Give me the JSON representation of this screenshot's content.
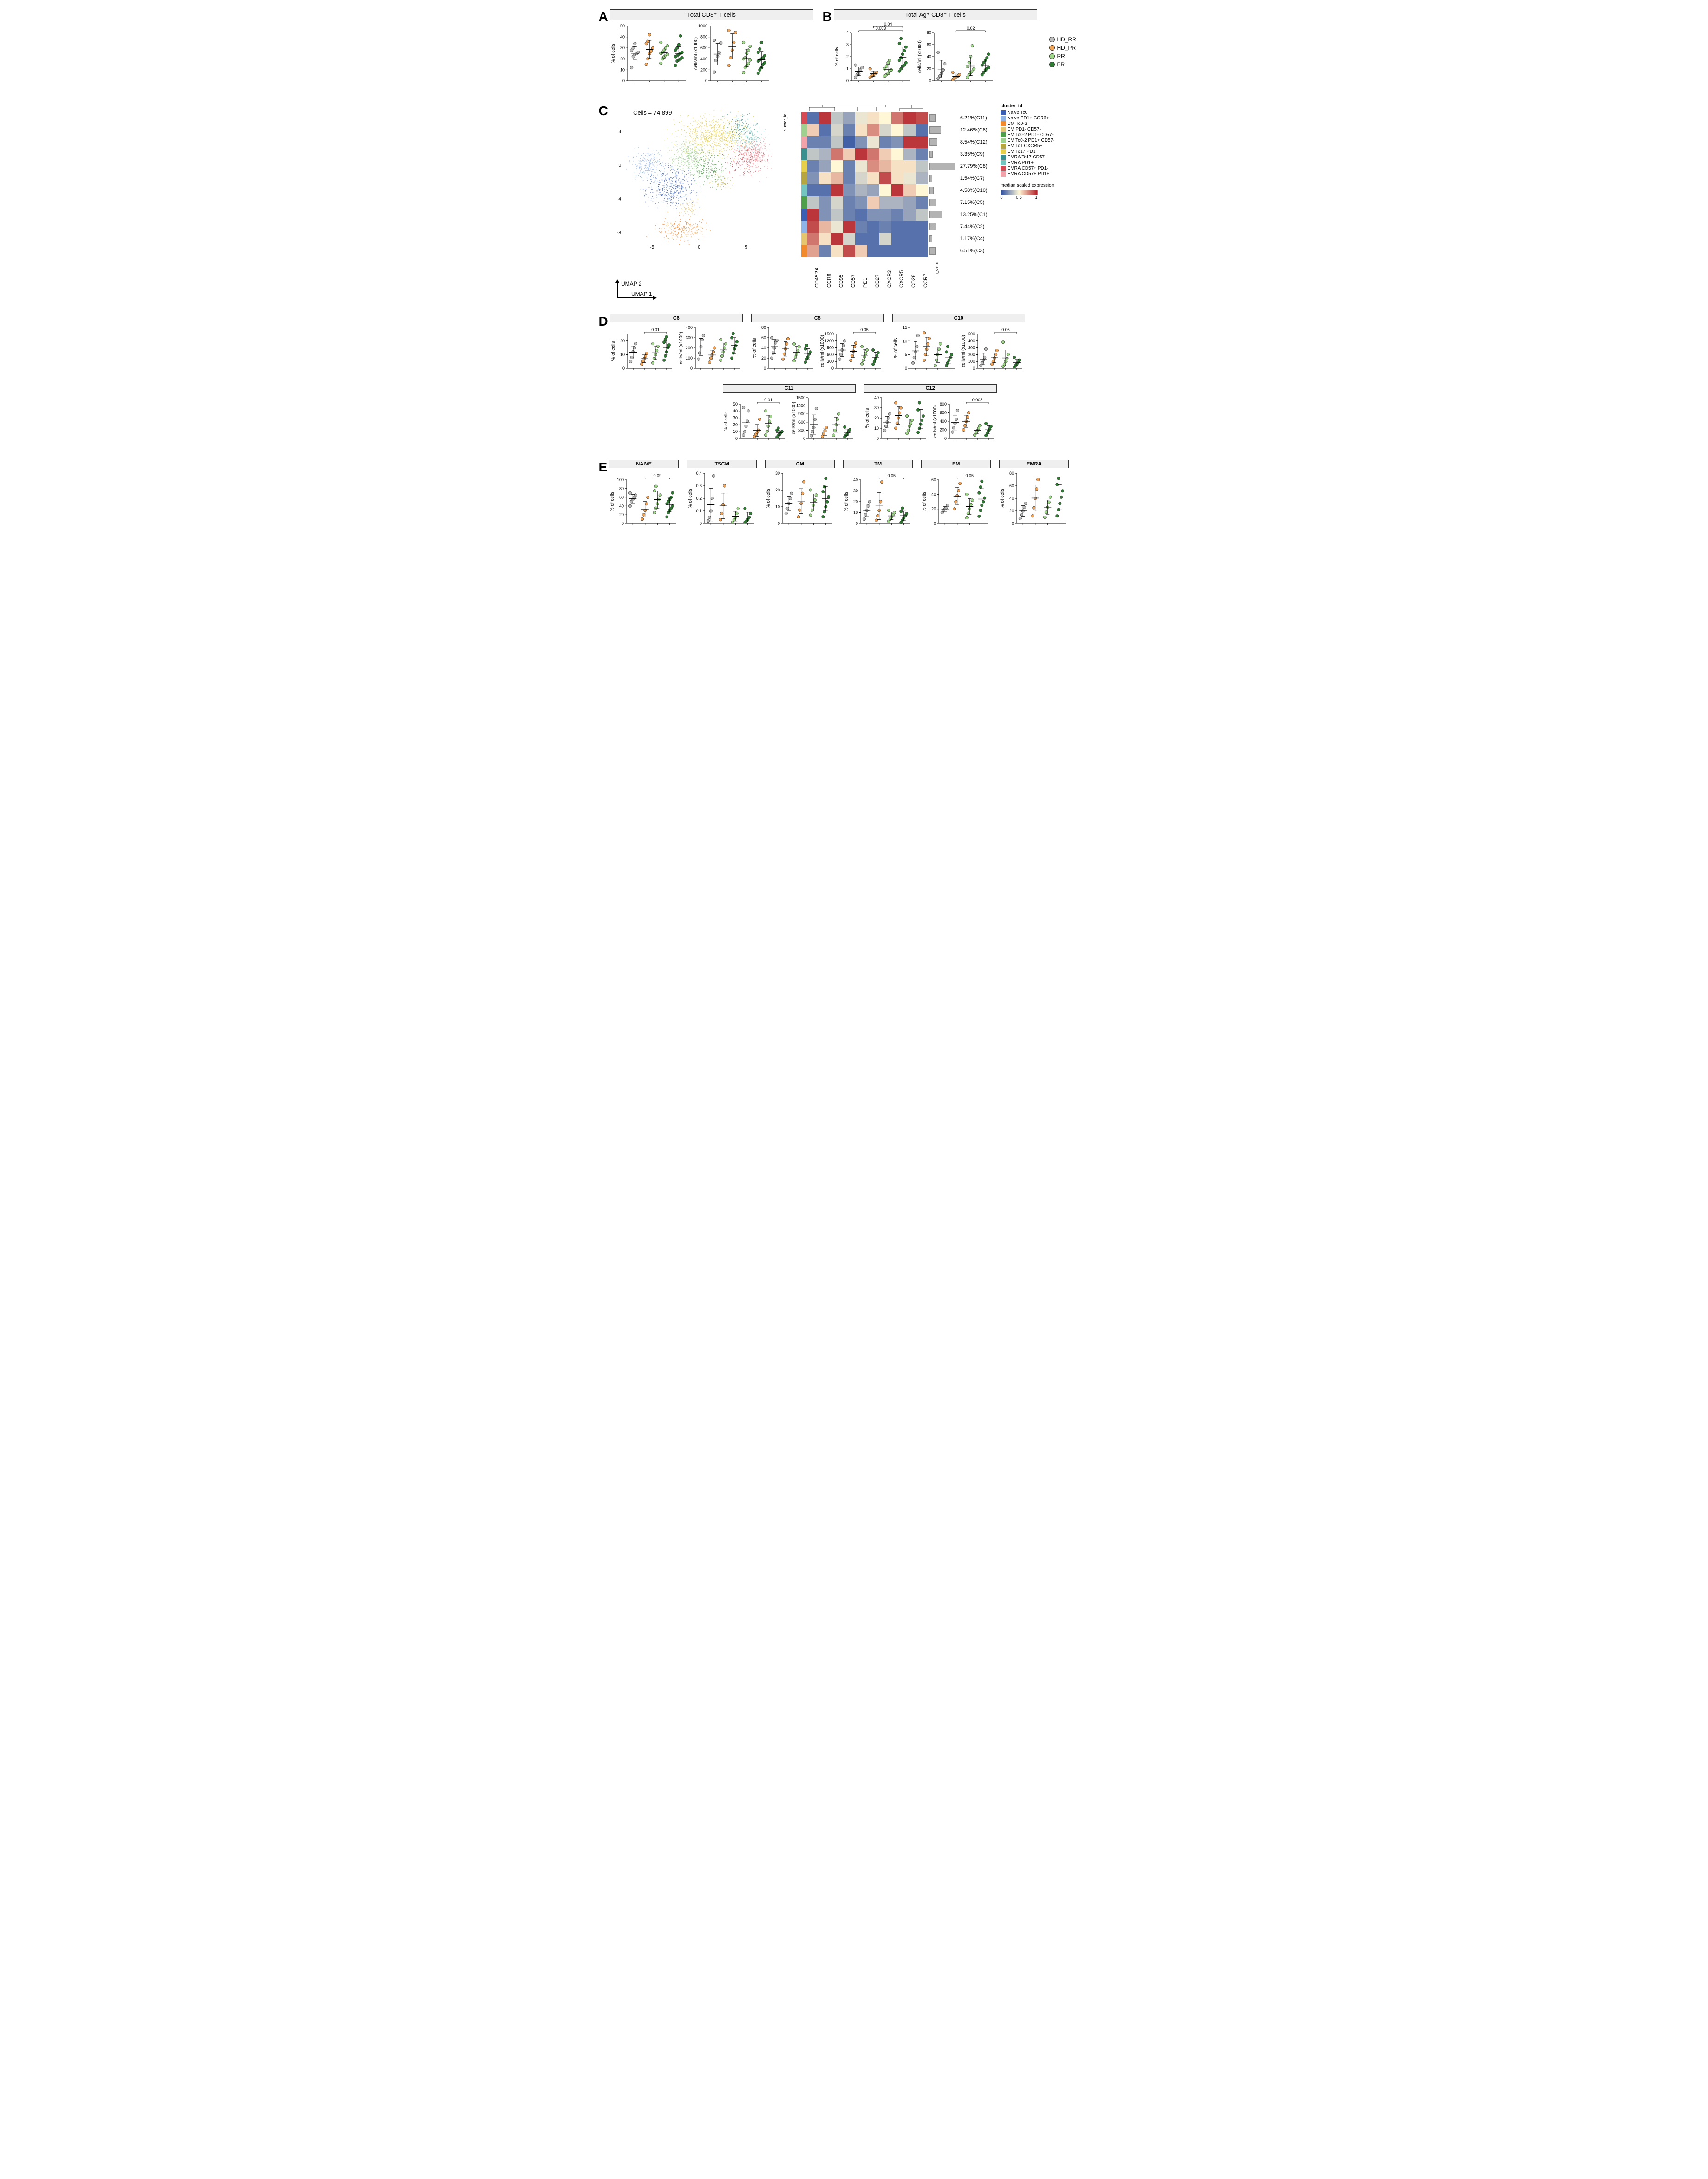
{
  "groups": [
    {
      "id": "HD_RR",
      "label": "HD_RR",
      "color": "#bdbdbd"
    },
    {
      "id": "HD_PR",
      "label": "HD_PR",
      "color": "#f2a65a"
    },
    {
      "id": "RR",
      "label": "RR",
      "color": "#a0d88a"
    },
    {
      "id": "PR",
      "label": "PR",
      "color": "#2e7d32"
    }
  ],
  "panelA": {
    "label": "A",
    "title": "Total CD8⁺ T cells",
    "charts": [
      {
        "ylabel": "% of cells",
        "ylim": [
          0,
          50
        ],
        "yticks": [
          0,
          10,
          20,
          30,
          40,
          50
        ],
        "data": {
          "HD_RR": [
            12,
            22,
            24,
            25,
            26,
            28,
            30,
            34
          ],
          "HD_PR": [
            15,
            20,
            25,
            27,
            30,
            34,
            36,
            42
          ],
          "RR": [
            16,
            20,
            22,
            23,
            24,
            25,
            26,
            28,
            30,
            32,
            35
          ],
          "PR": [
            14,
            18,
            19,
            20,
            21,
            22,
            23,
            24,
            25,
            26,
            28,
            30,
            33,
            41
          ]
        }
      },
      {
        "ylabel": "cells/ml (x1000)",
        "ylim": [
          0,
          1000
        ],
        "yticks": [
          0,
          200,
          400,
          600,
          800,
          1000
        ],
        "data": {
          "HD_RR": [
            160,
            370,
            440,
            520,
            690,
            740
          ],
          "HD_PR": [
            280,
            420,
            560,
            700,
            880,
            920
          ],
          "RR": [
            150,
            240,
            280,
            320,
            380,
            400,
            420,
            500,
            560,
            630,
            700
          ],
          "PR": [
            140,
            200,
            240,
            300,
            330,
            360,
            380,
            400,
            420,
            460,
            520,
            580,
            700
          ]
        }
      }
    ]
  },
  "panelB": {
    "label": "B",
    "title": "Total Ag⁺ CD8⁺ T cells",
    "charts": [
      {
        "ylabel": "% of cells",
        "ylim": [
          0,
          4
        ],
        "yticks": [
          0,
          1,
          2,
          3,
          4
        ],
        "sig": [
          {
            "from": 0,
            "to": 3,
            "label": "0.003"
          },
          {
            "from": 1,
            "to": 3,
            "label": "0.04"
          }
        ],
        "data": {
          "HD_RR": [
            0.3,
            0.5,
            0.6,
            0.9,
            1.1,
            1.3
          ],
          "HD_PR": [
            0.3,
            0.4,
            0.5,
            0.6,
            0.7,
            1.0
          ],
          "RR": [
            0.4,
            0.5,
            0.6,
            0.8,
            0.9,
            1.0,
            1.2,
            1.5,
            1.7
          ],
          "PR": [
            0.8,
            1.0,
            1.2,
            1.3,
            1.5,
            1.7,
            1.9,
            2.2,
            2.5,
            2.8,
            3.1,
            3.5
          ]
        }
      },
      {
        "ylabel": "cells/ml (x1000)",
        "ylim": [
          0,
          80
        ],
        "yticks": [
          0,
          20,
          40,
          60,
          80
        ],
        "sig": [
          {
            "from": 1,
            "to": 3,
            "label": "0.02"
          }
        ],
        "data": {
          "HD_RR": [
            4,
            8,
            12,
            18,
            28,
            47
          ],
          "HD_PR": [
            2,
            4,
            6,
            8,
            10,
            14
          ],
          "RR": [
            6,
            10,
            14,
            16,
            20,
            24,
            30,
            40,
            58
          ],
          "PR": [
            10,
            14,
            18,
            20,
            22,
            26,
            30,
            34,
            38,
            44
          ]
        }
      }
    ]
  },
  "panelC": {
    "label": "C",
    "cells_label": "Cells = 74,899",
    "umap": {
      "xlabel": "UMAP 1",
      "ylabel": "UMAP 2",
      "xlim": [
        -8,
        8
      ],
      "ylim": [
        -9,
        7
      ],
      "xticks": [
        -5,
        0,
        5
      ],
      "yticks": [
        -8,
        -4,
        0,
        4
      ]
    },
    "heatmap": {
      "markers": [
        "CD45RA",
        "CCR6",
        "CD95",
        "CD57",
        "PD1",
        "CD27",
        "CXCR3",
        "CXCR5",
        "CD28",
        "CCR7"
      ],
      "row_order": [
        "C11",
        "C6",
        "C12",
        "C9",
        "C8",
        "C7",
        "C10",
        "C5",
        "C1",
        "C2",
        "C4",
        "C3"
      ],
      "row_pct": {
        "C11": "6.21%(C11)",
        "C6": "12.46%(C6)",
        "C12": "8.54%(C12)",
        "C9": "3.35%(C9)",
        "C8": "27.79%(C8)",
        "C7": "1.54%(C7)",
        "C10": "4.58%(C10)",
        "C5": "7.15%(C5)",
        "C1": "13.25%(C1)",
        "C2": "7.44%(C2)",
        "C4": "1.17%(C4)",
        "C3": "6.51%(C3)"
      },
      "values": {
        "C11": [
          0.1,
          0.95,
          0.35,
          0.25,
          0.45,
          0.55,
          0.5,
          0.8,
          0.95,
          0.9
        ],
        "C6": [
          0.6,
          0.1,
          0.4,
          0.15,
          0.55,
          0.75,
          0.4,
          0.5,
          0.35,
          0.1
        ],
        "C12": [
          0.15,
          0.15,
          0.35,
          0.05,
          0.2,
          0.45,
          0.15,
          0.2,
          0.95,
          0.95
        ],
        "C9": [
          0.35,
          0.3,
          0.8,
          0.6,
          0.95,
          0.8,
          0.6,
          0.5,
          0.3,
          0.15
        ],
        "C8": [
          0.15,
          0.25,
          0.5,
          0.15,
          0.45,
          0.75,
          0.65,
          0.55,
          0.55,
          0.35
        ],
        "C7": [
          0.2,
          0.55,
          0.65,
          0.15,
          0.4,
          0.55,
          0.9,
          0.55,
          0.45,
          0.3
        ],
        "C10": [
          0.1,
          0.1,
          0.95,
          0.2,
          0.3,
          0.25,
          0.5,
          0.95,
          0.6,
          0.5
        ],
        "C5": [
          0.35,
          0.2,
          0.4,
          0.15,
          0.2,
          0.6,
          0.3,
          0.3,
          0.25,
          0.15
        ],
        "C1": [
          0.95,
          0.2,
          0.35,
          0.15,
          0.1,
          0.2,
          0.2,
          0.15,
          0.25,
          0.35
        ],
        "C2": [
          0.9,
          0.65,
          0.45,
          0.95,
          0.15,
          0.1,
          0.15,
          0.1,
          0.1,
          0.1
        ],
        "C4": [
          0.8,
          0.55,
          0.95,
          0.4,
          0.1,
          0.1,
          0.4,
          0.1,
          0.1,
          0.1
        ],
        "C3": [
          0.7,
          0.15,
          0.55,
          0.9,
          0.6,
          0.1,
          0.1,
          0.1,
          0.1,
          0.1
        ]
      },
      "colorscale": {
        "low": "#2c4fa0",
        "mid": "#fff7d6",
        "high": "#b3202a"
      }
    },
    "clusters": [
      {
        "id": "C1",
        "name": "Naive Tc0",
        "color": "#3b5fb2"
      },
      {
        "id": "C2",
        "name": "Naive PD1+ CCR6+",
        "color": "#8fb4e8"
      },
      {
        "id": "C3",
        "name": "CM Tc0-2",
        "color": "#f08a2c"
      },
      {
        "id": "C4",
        "name": "EM PD1- CD57-",
        "color": "#e6c56f"
      },
      {
        "id": "C5",
        "name": "EM Tc0-2 PD1- CD57-",
        "color": "#4f9e4a"
      },
      {
        "id": "C6",
        "name": "EM Tc0-2 PD1+ CD57-",
        "color": "#9ed08f"
      },
      {
        "id": "C7",
        "name": "EM Tc1 CXCR5+",
        "color": "#b5a642"
      },
      {
        "id": "C8",
        "name": "EM Tc17 PD1+",
        "color": "#e6cf4b"
      },
      {
        "id": "C9",
        "name": "EMRA Tc17 CD57-",
        "color": "#3a8f8f"
      },
      {
        "id": "C10",
        "name": "EMRA PD1+",
        "color": "#74c4c0"
      },
      {
        "id": "C11",
        "name": "EMRA CD57+ PD1-",
        "color": "#d64a54"
      },
      {
        "id": "C12",
        "name": "EMRA CD57+ PD1+",
        "color": "#f2a3aa"
      }
    ],
    "expr_legend": {
      "title": "median scaled expression",
      "ticks": [
        0,
        0.5,
        1
      ]
    },
    "ncells_label": "n_cells"
  },
  "panelD": {
    "label": "D",
    "panels": [
      {
        "title": "C6",
        "sig_pct": "0.01",
        "ylim_pct": [
          0,
          25
        ],
        "ylim_ct": [
          0,
          400
        ],
        "pct": {
          "HD_RR": [
            5,
            8,
            12,
            15,
            18
          ],
          "HD_PR": [
            3,
            5,
            7,
            9,
            11
          ],
          "RR": [
            4,
            7,
            10,
            13,
            16,
            18
          ],
          "PR": [
            6,
            9,
            12,
            15,
            17,
            19,
            21,
            23
          ]
        },
        "ct": {
          "HD_RR": [
            90,
            150,
            210,
            280,
            320
          ],
          "HD_PR": [
            60,
            100,
            130,
            160,
            200
          ],
          "RR": [
            80,
            120,
            160,
            200,
            240,
            280
          ],
          "PR": [
            100,
            150,
            190,
            220,
            260,
            300,
            340
          ]
        }
      },
      {
        "title": "C8",
        "sig_ct": "0.05",
        "ylim_pct": [
          0,
          80
        ],
        "ylim_ct": [
          0,
          1500
        ],
        "pct": {
          "HD_RR": [
            20,
            30,
            40,
            50,
            55,
            60
          ],
          "HD_PR": [
            18,
            28,
            38,
            48,
            58
          ],
          "RR": [
            15,
            22,
            28,
            35,
            42,
            48
          ],
          "PR": [
            12,
            18,
            22,
            28,
            32,
            38,
            45
          ]
        },
        "ct": {
          "HD_RR": [
            400,
            600,
            800,
            1000,
            1200
          ],
          "HD_PR": [
            350,
            550,
            750,
            950,
            1100
          ],
          "RR": [
            200,
            350,
            500,
            650,
            800,
            950
          ],
          "PR": [
            180,
            300,
            420,
            550,
            680,
            800
          ]
        }
      },
      {
        "title": "C10",
        "sig_ct": "0.05",
        "ylim_pct": [
          0,
          15
        ],
        "ylim_ct": [
          0,
          500
        ],
        "pct": {
          "HD_RR": [
            2,
            4,
            6,
            8,
            12
          ],
          "HD_PR": [
            3,
            5,
            7,
            9,
            11,
            13
          ],
          "RR": [
            1,
            3,
            5,
            7,
            9
          ],
          "PR": [
            1,
            2,
            3,
            4,
            5,
            6,
            8
          ]
        },
        "ct": {
          "HD_RR": [
            40,
            80,
            120,
            160,
            280
          ],
          "HD_PR": [
            60,
            100,
            150,
            200,
            260
          ],
          "RR": [
            30,
            60,
            100,
            140,
            200,
            380
          ],
          "PR": [
            20,
            40,
            60,
            90,
            120,
            160
          ]
        }
      },
      {
        "title": "C11",
        "sig_pct": "0.01",
        "ylim_pct": [
          0,
          50
        ],
        "ylim_ct": [
          0,
          1500
        ],
        "pct": {
          "HD_RR": [
            5,
            10,
            18,
            25,
            40,
            45
          ],
          "HD_PR": [
            3,
            6,
            9,
            12,
            28
          ],
          "RR": [
            5,
            10,
            18,
            25,
            32,
            40
          ],
          "PR": [
            2,
            4,
            6,
            8,
            10,
            12,
            15
          ]
        },
        "ct": {
          "HD_RR": [
            100,
            250,
            400,
            700,
            1100
          ],
          "HD_PR": [
            80,
            180,
            280,
            400
          ],
          "RR": [
            120,
            300,
            500,
            700,
            900
          ],
          "PR": [
            60,
            120,
            180,
            250,
            320,
            420
          ]
        }
      },
      {
        "title": "C12",
        "sig_ct": "0.008",
        "ylim_pct": [
          0,
          40
        ],
        "ylim_ct": [
          0,
          800
        ],
        "pct": {
          "HD_RR": [
            8,
            12,
            16,
            20,
            24
          ],
          "HD_PR": [
            10,
            15,
            20,
            25,
            30,
            35
          ],
          "RR": [
            5,
            8,
            12,
            15,
            18,
            22
          ],
          "PR": [
            6,
            10,
            14,
            18,
            22,
            28,
            35
          ]
        },
        "ct": {
          "HD_RR": [
            150,
            250,
            350,
            450,
            650
          ],
          "HD_PR": [
            200,
            300,
            400,
            500,
            600
          ],
          "RR": [
            80,
            130,
            180,
            240,
            300
          ],
          "PR": [
            70,
            120,
            170,
            220,
            280,
            350
          ]
        }
      }
    ]
  },
  "panelE": {
    "label": "E",
    "panels": [
      {
        "title": "NAIVE",
        "sig": "0.09",
        "ylim": [
          0,
          100
        ],
        "data": {
          "HD_RR": [
            40,
            50,
            55,
            60,
            65,
            70
          ],
          "HD_PR": [
            10,
            20,
            30,
            45,
            60
          ],
          "RR": [
            25,
            35,
            45,
            55,
            65,
            75,
            85
          ],
          "PR": [
            15,
            25,
            30,
            35,
            40,
            45,
            50,
            55,
            60,
            70
          ]
        }
      },
      {
        "title": "TSCM",
        "ylim": [
          0,
          0.4
        ],
        "data": {
          "HD_RR": [
            0.02,
            0.05,
            0.1,
            0.2,
            0.38
          ],
          "HD_PR": [
            0.03,
            0.08,
            0.15,
            0.3
          ],
          "RR": [
            0.01,
            0.03,
            0.05,
            0.08,
            0.12
          ],
          "PR": [
            0.01,
            0.02,
            0.03,
            0.05,
            0.08,
            0.12
          ]
        }
      },
      {
        "title": "CM",
        "ylim": [
          0,
          30
        ],
        "data": {
          "HD_RR": [
            6,
            9,
            12,
            15,
            18
          ],
          "HD_PR": [
            4,
            8,
            12,
            18,
            25
          ],
          "RR": [
            5,
            8,
            11,
            14,
            17,
            20
          ],
          "PR": [
            4,
            7,
            10,
            13,
            16,
            19,
            22,
            27
          ]
        }
      },
      {
        "title": "TM",
        "sig": "0.05",
        "ylim": [
          0,
          40
        ],
        "data": {
          "HD_RR": [
            4,
            8,
            12,
            16,
            20
          ],
          "HD_PR": [
            3,
            7,
            12,
            20,
            38
          ],
          "RR": [
            2,
            4,
            6,
            8,
            10,
            12
          ],
          "PR": [
            1,
            3,
            5,
            7,
            9,
            11,
            14
          ]
        }
      },
      {
        "title": "EM",
        "sig": "0.05",
        "ylim": [
          0,
          60
        ],
        "data": {
          "HD_RR": [
            15,
            18,
            20,
            22,
            25
          ],
          "HD_PR": [
            20,
            30,
            38,
            45,
            55
          ],
          "RR": [
            8,
            14,
            20,
            26,
            32,
            40
          ],
          "PR": [
            10,
            18,
            25,
            30,
            35,
            42,
            50,
            58
          ]
        }
      },
      {
        "title": "EMRA",
        "ylim": [
          0,
          80
        ],
        "data": {
          "HD_RR": [
            8,
            14,
            20,
            26,
            32
          ],
          "HD_PR": [
            12,
            25,
            40,
            55,
            70
          ],
          "RR": [
            10,
            18,
            26,
            34,
            42
          ],
          "PR": [
            12,
            22,
            32,
            42,
            52,
            62,
            72
          ]
        }
      }
    ]
  },
  "axis_label_pct": "% of cells",
  "axis_label_ct": "cells/ml (x1000)",
  "cluster_id_header": "cluster_id"
}
